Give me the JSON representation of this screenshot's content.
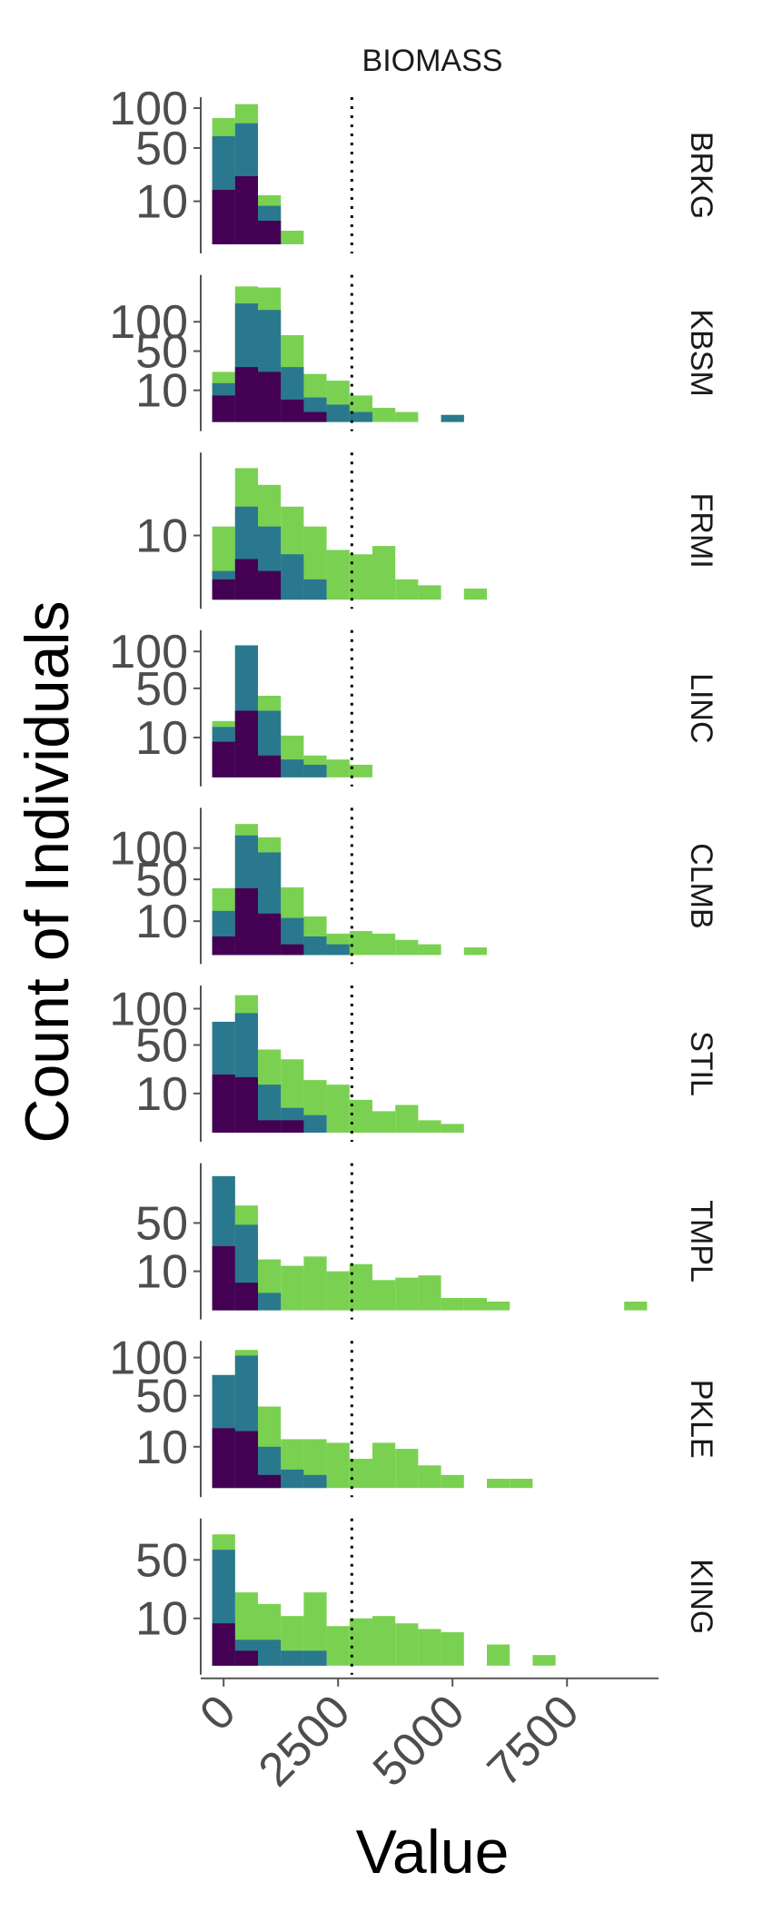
{
  "chart_data": {
    "type": "bar",
    "subtype": "stacked-histogram-faceted",
    "title": "BIOMASS",
    "xlabel": "Value",
    "ylabel": "Count of Individuals",
    "y_scale": "sqrt",
    "grid": false,
    "legend": "none",
    "bin_width": 500,
    "x_range": [
      -500,
      9500
    ],
    "x_ticks": [
      0,
      2500,
      5000,
      7500
    ],
    "x_tick_labels": [
      "0",
      "2500",
      "5000",
      "7500"
    ],
    "reference_line": {
      "x": 2800,
      "style": "dotted",
      "color": "#000000"
    },
    "colors": [
      "#440154",
      "#2a788e",
      "#7ad151"
    ],
    "panels": [
      {
        "label": "BRKG",
        "y_ticks": [
          10,
          50,
          100
        ],
        "y_max": 111,
        "bins": [
          {
            "x0": -250,
            "x1": 250,
            "stack": [
              16,
              63,
              86
            ]
          },
          {
            "x0": 250,
            "x1": 750,
            "stack": [
              25,
              79,
              106
            ]
          },
          {
            "x0": 750,
            "x1": 1250,
            "stack": [
              3,
              8,
              13
            ]
          },
          {
            "x0": 1250,
            "x1": 1750,
            "stack": [
              0,
              0,
              1
            ]
          }
        ]
      },
      {
        "label": "KBSM",
        "y_ticks": [
          10,
          50,
          100
        ],
        "y_max": 205,
        "bins": [
          {
            "x0": -250,
            "x1": 250,
            "stack": [
              7,
              15,
              25
            ]
          },
          {
            "x0": 250,
            "x1": 750,
            "stack": [
              30,
              140,
              183
            ]
          },
          {
            "x0": 750,
            "x1": 1250,
            "stack": [
              25,
              125,
              180
            ]
          },
          {
            "x0": 1250,
            "x1": 1750,
            "stack": [
              5,
              30,
              75
            ]
          },
          {
            "x0": 1750,
            "x1": 2250,
            "stack": [
              1,
              6,
              23
            ]
          },
          {
            "x0": 2250,
            "x1": 2750,
            "stack": [
              0,
              3,
              17
            ]
          },
          {
            "x0": 2750,
            "x1": 3250,
            "stack": [
              0,
              1,
              7
            ]
          },
          {
            "x0": 3250,
            "x1": 3750,
            "stack": [
              0,
              0,
              2
            ]
          },
          {
            "x0": 3750,
            "x1": 4250,
            "stack": [
              0,
              0,
              1
            ]
          },
          {
            "x0": 4750,
            "x1": 5250,
            "stack": [
              0,
              0.5,
              0.5
            ]
          }
        ]
      },
      {
        "label": "FRMI",
        "y_ticks": [
          10
        ],
        "y_max": 50,
        "bins": [
          {
            "x0": -250,
            "x1": 250,
            "stack": [
              1,
              2,
              13
            ]
          },
          {
            "x0": 250,
            "x1": 750,
            "stack": [
              4,
              21,
              42
            ]
          },
          {
            "x0": 750,
            "x1": 1250,
            "stack": [
              2,
              13,
              32
            ]
          },
          {
            "x0": 1250,
            "x1": 1750,
            "stack": [
              0,
              5,
              21
            ]
          },
          {
            "x0": 1750,
            "x1": 2250,
            "stack": [
              0,
              1,
              13
            ]
          },
          {
            "x0": 2250,
            "x1": 2750,
            "stack": [
              0,
              0,
              6
            ]
          },
          {
            "x0": 2750,
            "x1": 3250,
            "stack": [
              0,
              0,
              5
            ]
          },
          {
            "x0": 3250,
            "x1": 3750,
            "stack": [
              0,
              0,
              7
            ]
          },
          {
            "x0": 3750,
            "x1": 4250,
            "stack": [
              0,
              0,
              1
            ]
          },
          {
            "x0": 4250,
            "x1": 4750,
            "stack": [
              0,
              0,
              0.5
            ]
          },
          {
            "x0": 5250,
            "x1": 5750,
            "stack": [
              0,
              0,
              0.3
            ]
          }
        ]
      },
      {
        "label": "LINC",
        "y_ticks": [
          10,
          50,
          100
        ],
        "y_max": 130,
        "bins": [
          {
            "x0": -250,
            "x1": 250,
            "stack": [
              8,
              16,
              20
            ]
          },
          {
            "x0": 250,
            "x1": 750,
            "stack": [
              28,
              110,
              110
            ]
          },
          {
            "x0": 750,
            "x1": 1250,
            "stack": [
              3,
              28,
              42
            ]
          },
          {
            "x0": 1250,
            "x1": 1750,
            "stack": [
              0,
              2,
              11
            ]
          },
          {
            "x0": 1750,
            "x1": 2250,
            "stack": [
              0,
              1,
              3
            ]
          },
          {
            "x0": 2250,
            "x1": 2750,
            "stack": [
              0,
              0,
              2
            ]
          },
          {
            "x0": 2750,
            "x1": 3250,
            "stack": [
              0,
              0,
              1
            ]
          }
        ]
      },
      {
        "label": "CLMB",
        "y_ticks": [
          10,
          50,
          100
        ],
        "y_max": 180,
        "bins": [
          {
            "x0": -250,
            "x1": 250,
            "stack": [
              3,
              17,
              39
            ]
          },
          {
            "x0": 250,
            "x1": 750,
            "stack": [
              39,
              125,
              150
            ]
          },
          {
            "x0": 750,
            "x1": 1250,
            "stack": [
              15,
              92,
              121
            ]
          },
          {
            "x0": 1250,
            "x1": 1750,
            "stack": [
              1,
              12,
              40
            ]
          },
          {
            "x0": 1750,
            "x1": 2250,
            "stack": [
              0,
              3,
              13
            ]
          },
          {
            "x0": 2250,
            "x1": 2750,
            "stack": [
              0,
              1,
              4
            ]
          },
          {
            "x0": 2750,
            "x1": 3250,
            "stack": [
              0,
              0,
              5
            ]
          },
          {
            "x0": 3250,
            "x1": 3750,
            "stack": [
              0,
              0,
              4
            ]
          },
          {
            "x0": 3750,
            "x1": 4250,
            "stack": [
              0,
              0,
              2
            ]
          },
          {
            "x0": 4250,
            "x1": 4750,
            "stack": [
              0,
              0,
              1
            ]
          },
          {
            "x0": 5250,
            "x1": 5750,
            "stack": [
              0,
              0,
              0.5
            ]
          }
        ]
      },
      {
        "label": "STIL",
        "y_ticks": [
          10,
          50,
          100
        ],
        "y_max": 134,
        "bins": [
          {
            "x0": -250,
            "x1": 250,
            "stack": [
              22,
              80,
              80
            ]
          },
          {
            "x0": 250,
            "x1": 750,
            "stack": [
              20,
              93,
              123
            ]
          },
          {
            "x0": 750,
            "x1": 1250,
            "stack": [
              1,
              15,
              45
            ]
          },
          {
            "x0": 1250,
            "x1": 1750,
            "stack": [
              1,
              4,
              35
            ]
          },
          {
            "x0": 1750,
            "x1": 2250,
            "stack": [
              0,
              2,
              18
            ]
          },
          {
            "x0": 2250,
            "x1": 2750,
            "stack": [
              0,
              0,
              15
            ]
          },
          {
            "x0": 2750,
            "x1": 3250,
            "stack": [
              0,
              0,
              7
            ]
          },
          {
            "x0": 3250,
            "x1": 3750,
            "stack": [
              0,
              0,
              3
            ]
          },
          {
            "x0": 3750,
            "x1": 4250,
            "stack": [
              0,
              0,
              5
            ]
          },
          {
            "x0": 4250,
            "x1": 4750,
            "stack": [
              0,
              0,
              1
            ]
          },
          {
            "x0": 4750,
            "x1": 5250,
            "stack": [
              0,
              0,
              0.5
            ]
          }
        ]
      },
      {
        "label": "TMPL",
        "y_ticks": [
          10,
          50
        ],
        "y_max": 135,
        "bins": [
          {
            "x0": -250,
            "x1": 250,
            "stack": [
              27,
              118,
              118
            ]
          },
          {
            "x0": 250,
            "x1": 750,
            "stack": [
              5,
              48,
              72
            ]
          },
          {
            "x0": 750,
            "x1": 1250,
            "stack": [
              0,
              2,
              17
            ]
          },
          {
            "x0": 1250,
            "x1": 1750,
            "stack": [
              0,
              0,
              13
            ]
          },
          {
            "x0": 1750,
            "x1": 2250,
            "stack": [
              0,
              0,
              19
            ]
          },
          {
            "x0": 2250,
            "x1": 2750,
            "stack": [
              0,
              0,
              10
            ]
          },
          {
            "x0": 2750,
            "x1": 3250,
            "stack": [
              0,
              0,
              14
            ]
          },
          {
            "x0": 3250,
            "x1": 3750,
            "stack": [
              0,
              0,
              6
            ]
          },
          {
            "x0": 3750,
            "x1": 4250,
            "stack": [
              0,
              0,
              7
            ]
          },
          {
            "x0": 4250,
            "x1": 4750,
            "stack": [
              0,
              0,
              8
            ]
          },
          {
            "x0": 4750,
            "x1": 5250,
            "stack": [
              0,
              0,
              1
            ]
          },
          {
            "x0": 5250,
            "x1": 5750,
            "stack": [
              0,
              0,
              1
            ]
          },
          {
            "x0": 5750,
            "x1": 6250,
            "stack": [
              0,
              0,
              0.5
            ]
          },
          {
            "x0": 8750,
            "x1": 9250,
            "stack": [
              0,
              0,
              0.5
            ]
          }
        ]
      },
      {
        "label": "PKLE",
        "y_ticks": [
          10,
          50,
          100
        ],
        "y_max": 121,
        "bins": [
          {
            "x0": -250,
            "x1": 250,
            "stack": [
              21,
              75,
              75
            ]
          },
          {
            "x0": 250,
            "x1": 750,
            "stack": [
              19,
              103,
              112
            ]
          },
          {
            "x0": 750,
            "x1": 1250,
            "stack": [
              1,
              10,
              39
            ]
          },
          {
            "x0": 1250,
            "x1": 1750,
            "stack": [
              0,
              2,
              14
            ]
          },
          {
            "x0": 1750,
            "x1": 2250,
            "stack": [
              0,
              1,
              14
            ]
          },
          {
            "x0": 2250,
            "x1": 2750,
            "stack": [
              0,
              0,
              12
            ]
          },
          {
            "x0": 2750,
            "x1": 3250,
            "stack": [
              0,
              0,
              5
            ]
          },
          {
            "x0": 3250,
            "x1": 3750,
            "stack": [
              0,
              0,
              12
            ]
          },
          {
            "x0": 3750,
            "x1": 4250,
            "stack": [
              0,
              0,
              9
            ]
          },
          {
            "x0": 4250,
            "x1": 4750,
            "stack": [
              0,
              0,
              3
            ]
          },
          {
            "x0": 4750,
            "x1": 5250,
            "stack": [
              0,
              0,
              1
            ]
          },
          {
            "x0": 5750,
            "x1": 6250,
            "stack": [
              0,
              0,
              0.5
            ]
          },
          {
            "x0": 6250,
            "x1": 6750,
            "stack": [
              0,
              0,
              0.5
            ]
          }
        ]
      },
      {
        "label": "KING",
        "y_ticks": [
          10,
          50
        ],
        "y_max": 92,
        "bins": [
          {
            "x0": -250,
            "x1": 250,
            "stack": [
              8,
              60,
              77
            ]
          },
          {
            "x0": 250,
            "x1": 750,
            "stack": [
              1,
              3,
              24
            ]
          },
          {
            "x0": 750,
            "x1": 1250,
            "stack": [
              0,
              3,
              17
            ]
          },
          {
            "x0": 1250,
            "x1": 1750,
            "stack": [
              0,
              1,
              11
            ]
          },
          {
            "x0": 1750,
            "x1": 2250,
            "stack": [
              0,
              1,
              24
            ]
          },
          {
            "x0": 2250,
            "x1": 2750,
            "stack": [
              0,
              0,
              7
            ]
          },
          {
            "x0": 2750,
            "x1": 3250,
            "stack": [
              0,
              0,
              10
            ]
          },
          {
            "x0": 3250,
            "x1": 3750,
            "stack": [
              0,
              0,
              11
            ]
          },
          {
            "x0": 3750,
            "x1": 4250,
            "stack": [
              0,
              0,
              8
            ]
          },
          {
            "x0": 4250,
            "x1": 4750,
            "stack": [
              0,
              0,
              6
            ]
          },
          {
            "x0": 4750,
            "x1": 5250,
            "stack": [
              0,
              0,
              5
            ]
          },
          {
            "x0": 5750,
            "x1": 6250,
            "stack": [
              0,
              0,
              2
            ]
          },
          {
            "x0": 6750,
            "x1": 7250,
            "stack": [
              0,
              0,
              0.5
            ]
          }
        ]
      }
    ]
  }
}
